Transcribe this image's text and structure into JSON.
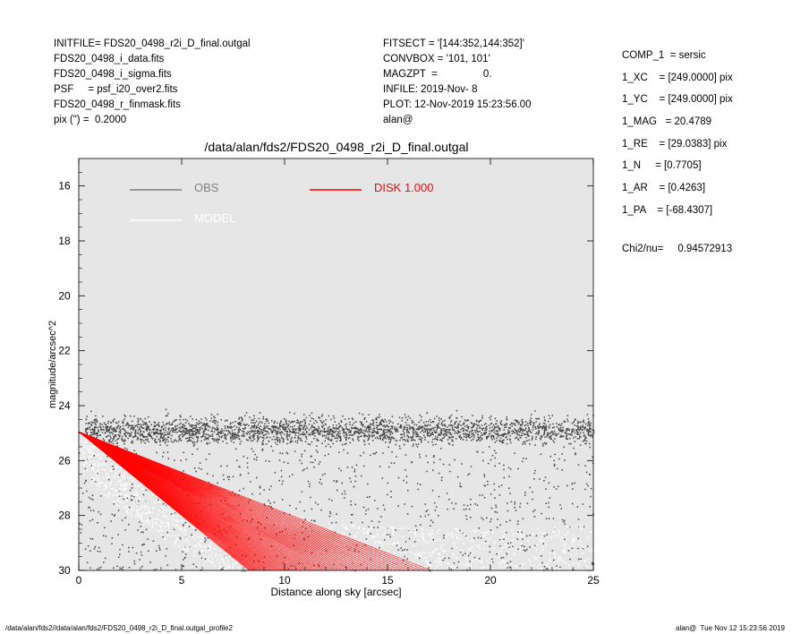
{
  "header_left": [
    "INITFILE= FDS20_0498_r2i_D_final.outgal",
    "FDS20_0498_i_data.fits",
    "FDS20_0498_i_sigma.fits",
    "PSF     = psf_i20_over2.fits",
    "FDS20_0498_r_finmask.fits",
    "pix (\") =  0.2000"
  ],
  "header_mid": [
    "FITSECT = '[144:352,144:352]'",
    "CONVBOX = '101, 101'",
    "MAGZPT  =                0.",
    "INFILE: 2019-Nov- 8",
    "PLOT: 12-Nov-2019 15:23:56.00",
    "alan@"
  ],
  "header_right": [
    "COMP_1  = sersic",
    "1_XC    = [249.0000] pix",
    "1_YC    = [249.0000] pix",
    "1_MAG   = 20.4789",
    "1_RE    = [29.0383] pix",
    "1_N     = [0.7705]",
    "1_AR    = [0.4263]",
    "1_PA    = [-68.4307]"
  ],
  "chi2": "Chi2/nu=     0.94572913",
  "footer_left": "/data/alan/fds2//data/alan/fds2/FDS20_0498_r2i_D_final.outgal_profile2",
  "footer_right": "alan@  Tue Nov 12 15:23:56 2019",
  "colors": {
    "background": "#e6e6e6",
    "obs": "#404040",
    "model": "#ffffff",
    "disk": "#ff0000",
    "obs_legend": "#808080"
  },
  "chart_data": {
    "type": "scatter",
    "title": "/data/alan/fds2/FDS20_0498_r2i_D_final.outgal",
    "xlabel": "Distance along sky [arcsec]",
    "ylabel": "magnitude/arcsec^2",
    "xlim": [
      0,
      25
    ],
    "ylim": [
      30,
      15
    ],
    "y_inverted": true,
    "x_ticks": [
      "0",
      "5",
      "10",
      "15",
      "20",
      "25"
    ],
    "y_ticks": [
      "16",
      "18",
      "20",
      "22",
      "24",
      "26",
      "28",
      "30"
    ],
    "legend": [
      {
        "name": "OBS",
        "color": "#808080"
      },
      {
        "name": "MODEL",
        "color": "#ffffff"
      },
      {
        "name": "DISK  1.000",
        "color": "#ff0000"
      }
    ],
    "series": [
      {
        "name": "OBS",
        "description_points": [
          {
            "x": 1,
            "y": 24.9
          },
          {
            "x": 3,
            "y": 24.8
          },
          {
            "x": 5,
            "y": 24.9
          },
          {
            "x": 10,
            "y": 24.9
          },
          {
            "x": 15,
            "y": 24.9
          },
          {
            "x": 20,
            "y": 24.9
          },
          {
            "x": 25,
            "y": 25.0
          }
        ]
      },
      {
        "name": "MODEL",
        "description_points": [
          {
            "x": 0,
            "y": 25.0
          },
          {
            "x": 5,
            "y": 27.0
          },
          {
            "x": 10,
            "y": 28.5
          },
          {
            "x": 15,
            "y": 29.5
          },
          {
            "x": 25,
            "y": 30.0
          }
        ]
      },
      {
        "name": "DISK  1.000",
        "band_lower_edge": [
          {
            "x": 0,
            "y": 24.95
          },
          {
            "x": 4,
            "y": 26.6
          },
          {
            "x": 8.5,
            "y": 30.0
          }
        ],
        "band_upper_edge": [
          {
            "x": 0,
            "y": 24.95
          },
          {
            "x": 8,
            "y": 26.6
          },
          {
            "x": 17,
            "y": 30.0
          }
        ]
      }
    ],
    "grid": false
  }
}
